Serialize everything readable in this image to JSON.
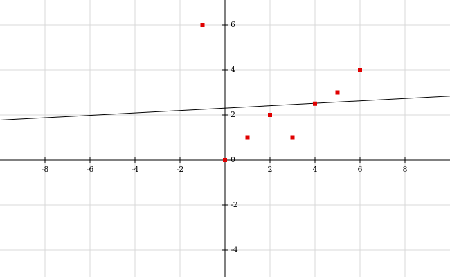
{
  "chart_data": {
    "type": "scatter",
    "x": [
      -1,
      0,
      1,
      2,
      3,
      4,
      5,
      6
    ],
    "series": [
      {
        "color": "#e00000",
        "values": [
          6,
          0,
          1,
          2,
          1,
          2.5,
          3,
          4
        ]
      }
    ],
    "trend_line": {
      "slope": 0.0536,
      "intercept": 2.3036,
      "color": "#000000"
    },
    "xlim": [
      -10,
      10
    ],
    "ylim": [
      -5.2,
      7.108
    ],
    "xticks": [
      -8,
      -6,
      -4,
      -2,
      2,
      4,
      6,
      8
    ],
    "yticks": [
      -4,
      -2,
      0,
      2,
      4,
      6
    ],
    "grid": true
  }
}
